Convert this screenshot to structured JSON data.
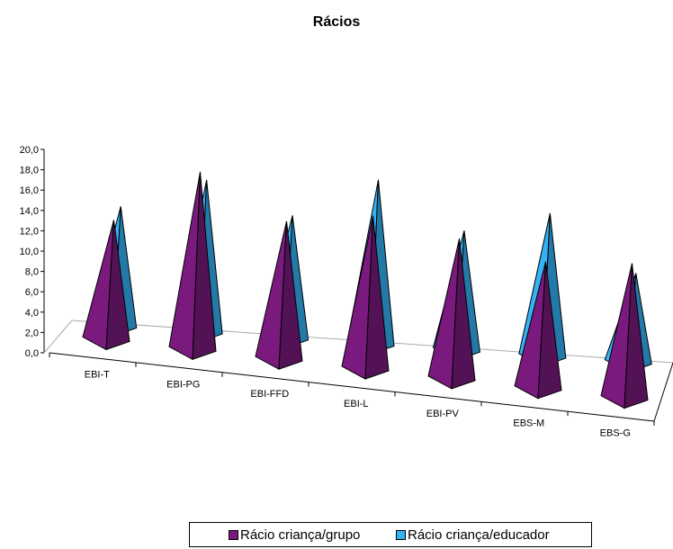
{
  "chart_data": {
    "type": "bar",
    "title": "Rácios",
    "categories": [
      "EBI-T",
      "EBI-PG",
      "EBI-FFD",
      "EBI-L",
      "EBI-PV",
      "EBS-M",
      "EBS-G"
    ],
    "series": [
      {
        "name": "Rácio criança/grupo",
        "color": "#7B1A7E",
        "values": [
          11.9,
          17.6,
          13.7,
          15.2,
          13.9,
          12.6,
          13.4
        ]
      },
      {
        "name": "Rácio criança/educador",
        "color": "#33B2F5",
        "values": [
          11.9,
          15.1,
          12.2,
          16.3,
          11.9,
          14.2,
          8.9
        ]
      }
    ],
    "yaxis": {
      "min": 0,
      "max": 20,
      "ticks": [
        "0,0",
        "2,0",
        "4,0",
        "6,0",
        "8,0",
        "10,0",
        "12,0",
        "14,0",
        "16,0",
        "18,0",
        "20,0"
      ]
    },
    "mark_shape": "pyramid",
    "grid": false,
    "legend_position": "bottom"
  }
}
